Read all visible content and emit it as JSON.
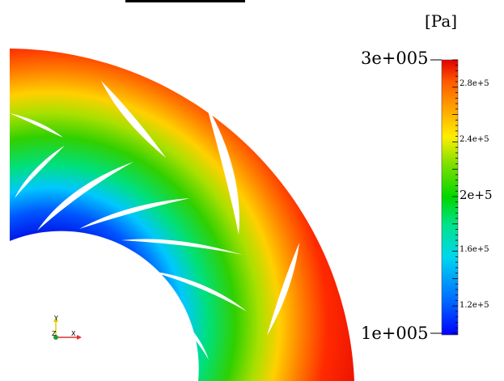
{
  "colorbar": {
    "unit": "[Pa]",
    "max_label": "3e+005",
    "min_label": "1e+005",
    "tick_labels": [
      "2.8e+5",
      "2.4e+5",
      "2e+5",
      "1.6e+5",
      "1.2e+5"
    ],
    "colors": [
      "#0000ff",
      "#0066ff",
      "#00d6f0",
      "#00e38a",
      "#00d600",
      "#7ee000",
      "#ffee00",
      "#ffa600",
      "#ff5a00",
      "#e00000"
    ]
  },
  "axes_triad": {
    "y_label": "Y",
    "z_label": "Z",
    "x_label": "X",
    "x_color": "#e03030",
    "y_color": "#e0d000",
    "z_color": "#1b9e3a"
  },
  "scene": {
    "description_hidden": "",
    "hub_color": "#ffffff",
    "background": "#ffffff"
  }
}
